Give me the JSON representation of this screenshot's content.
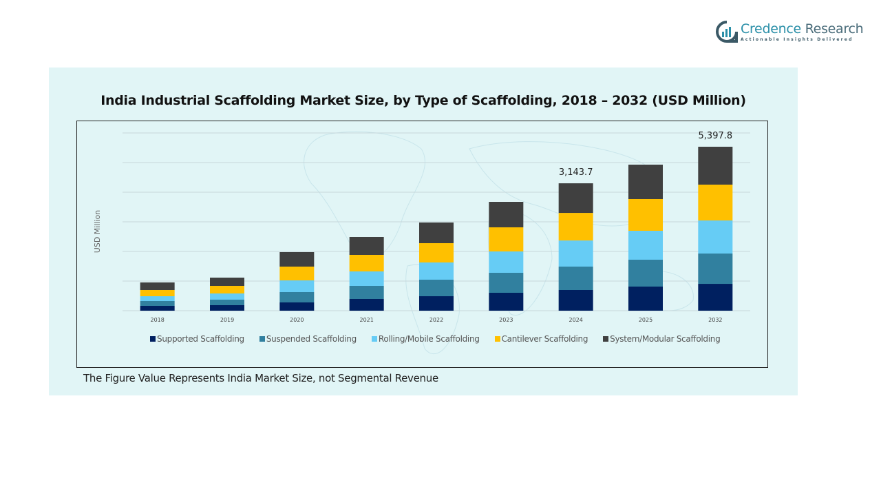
{
  "brand": {
    "name_part1": "Credence",
    "name_part2": " Research",
    "tagline": "Actionable Insights Delivered"
  },
  "footnote": "The Figure Value Represents India Market Size, not Segmental Revenue",
  "chart_data": {
    "type": "bar",
    "stacked": true,
    "title": "India Industrial Scaffolding Market Size, by Type of Scaffolding, 2018 – 2032 (USD Million)",
    "xlabel": "",
    "ylabel": "USD Million",
    "ylim": [
      0,
      5600
    ],
    "grid": true,
    "legend_position": "bottom",
    "categories": [
      "2018",
      "2019",
      "2020",
      "2021",
      "2022",
      "2023",
      "2024",
      "2025",
      "2032"
    ],
    "series": [
      {
        "name": "Supported Scaffolding",
        "color": "#002060",
        "values": [
          119,
          136,
          204,
          289,
          357,
          442,
          510,
          595,
          884
        ]
      },
      {
        "name": "Suspended Scaffolding",
        "color": "#31809f",
        "values": [
          119,
          136,
          255,
          323,
          408,
          493,
          578,
          663,
          998
        ]
      },
      {
        "name": "Rolling/Mobile Scaffolding",
        "color": "#66ccf5",
        "values": [
          119,
          153,
          289,
          357,
          425,
          527,
          645,
          714,
          1089
        ]
      },
      {
        "name": "Cantilever Scaffolding",
        "color": "#ffc000",
        "values": [
          153,
          187,
          340,
          408,
          476,
          595,
          680,
          782,
          1179
        ]
      },
      {
        "name": "System/Modular Scaffolding",
        "color": "#404040",
        "values": [
          187,
          204,
          357,
          442,
          510,
          629,
          730.7,
          850,
          1247.8
        ]
      }
    ],
    "data_labels": [
      {
        "category": "2024",
        "text": "3,143.7"
      },
      {
        "category": "2032",
        "text": "5,397.8"
      }
    ]
  }
}
